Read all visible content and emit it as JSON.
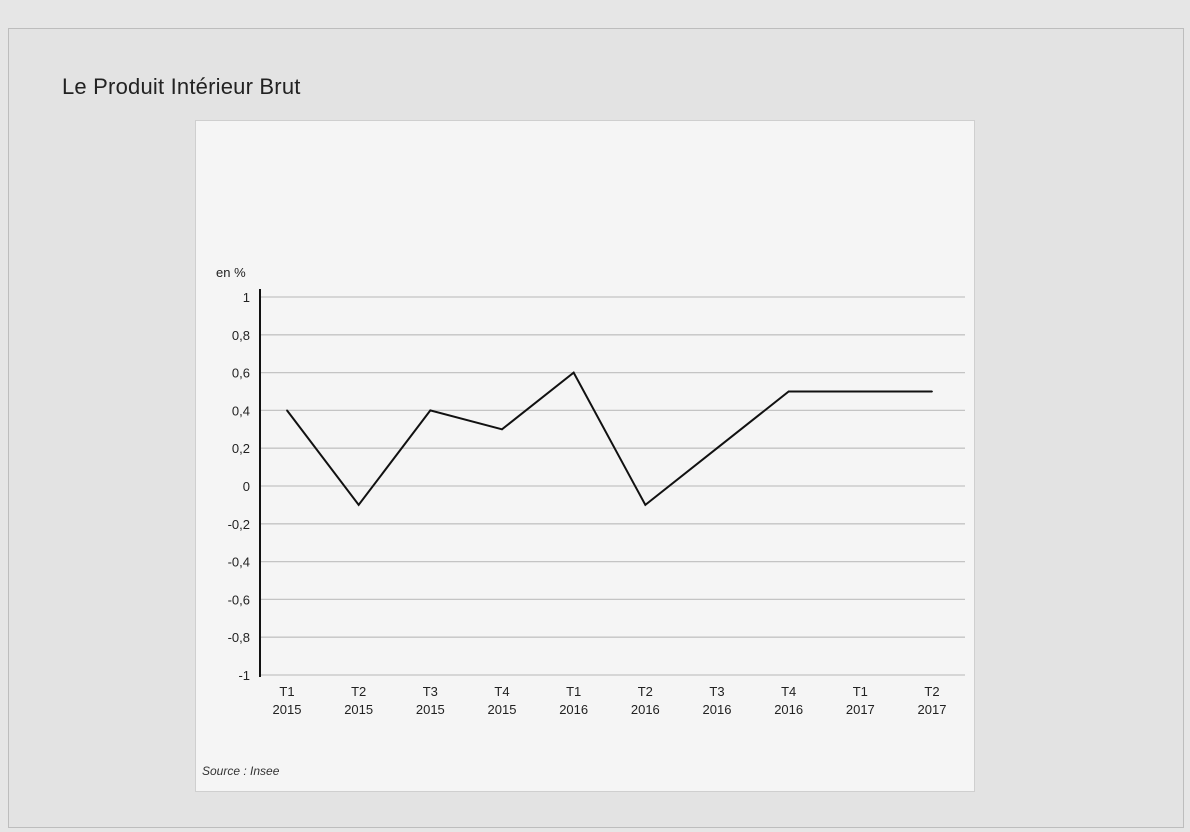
{
  "page": {
    "title": "Le Produit Intérieur Brut"
  },
  "chart_data": {
    "type": "line",
    "title": "",
    "xlabel": "",
    "ylabel": "en %",
    "ylim": [
      -1,
      1
    ],
    "yticks": [
      1,
      0.8,
      0.6,
      0.4,
      0.2,
      0,
      -0.2,
      -0.4,
      -0.6,
      -0.8,
      -1
    ],
    "ytick_labels": [
      "1",
      "0,8",
      "0,6",
      "0,4",
      "0,2",
      "0",
      "-0,2",
      "-0,4",
      "-0,6",
      "-0,8",
      "-1"
    ],
    "categories": [
      [
        "T1",
        "2015"
      ],
      [
        "T2",
        "2015"
      ],
      [
        "T3",
        "2015"
      ],
      [
        "T4",
        "2015"
      ],
      [
        "T1",
        "2016"
      ],
      [
        "T2",
        "2016"
      ],
      [
        "T3",
        "2016"
      ],
      [
        "T4",
        "2016"
      ],
      [
        "T1",
        "2017"
      ],
      [
        "T2",
        "2017"
      ]
    ],
    "series": [
      {
        "values": [
          0.4,
          -0.1,
          0.4,
          0.3,
          0.6,
          -0.1,
          0.2,
          0.5,
          0.5,
          0.5
        ],
        "color": "#111111"
      }
    ],
    "grid": true,
    "source": "Source : Insee"
  }
}
